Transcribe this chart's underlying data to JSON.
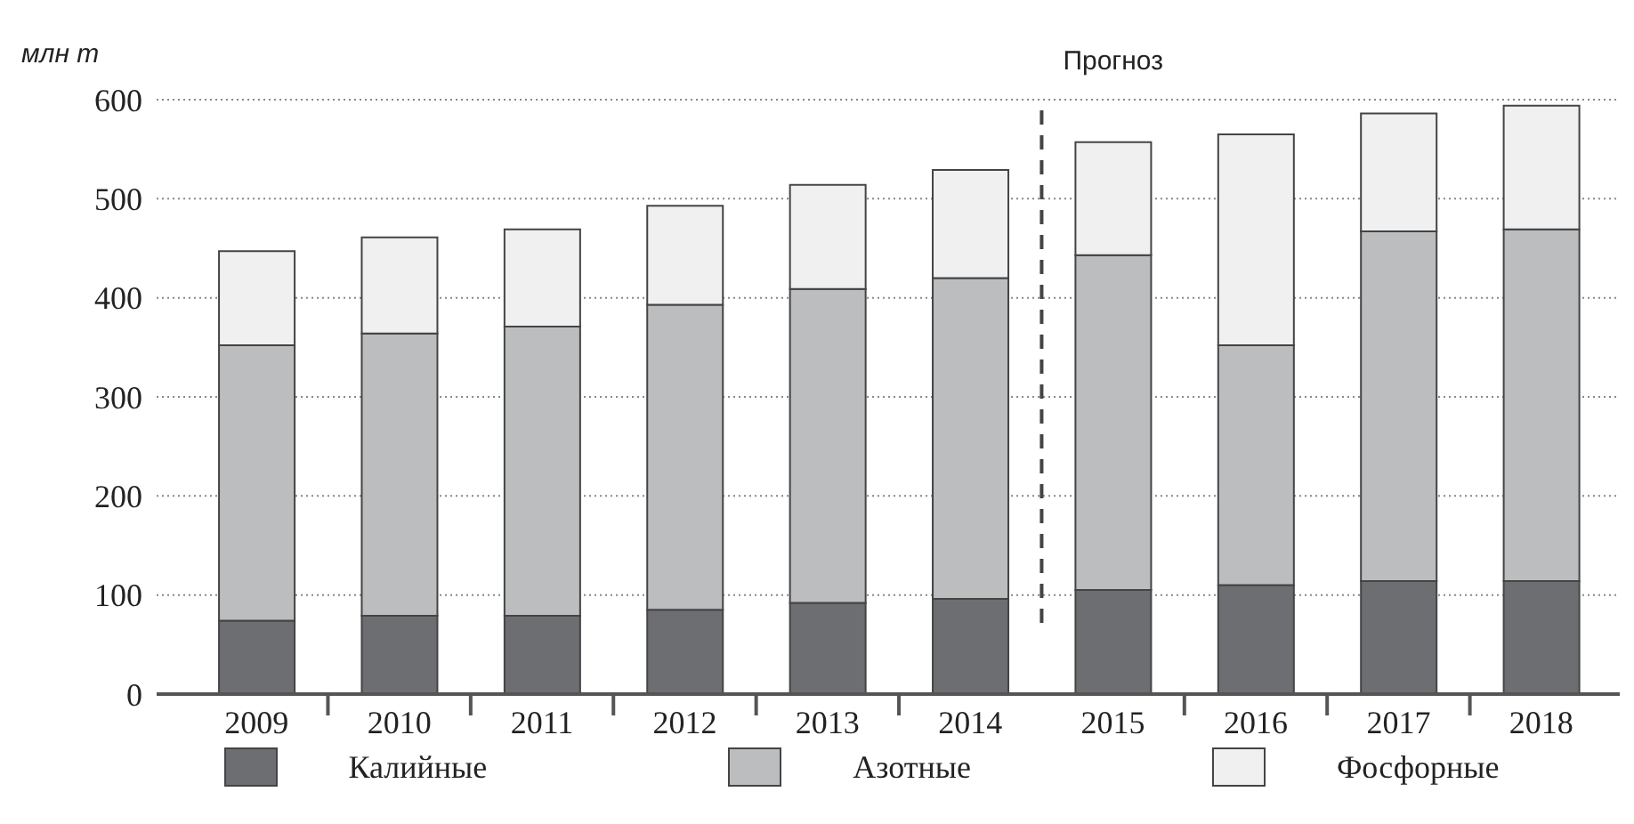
{
  "chart_data": {
    "type": "bar",
    "stacked": true,
    "ylabel": "млн т",
    "x": [
      2009,
      2010,
      2011,
      2012,
      2013,
      2014,
      2015,
      2016,
      2017,
      2018
    ],
    "series": [
      {
        "name": "Калийные",
        "color": "#6d6e71",
        "values": [
          74,
          79,
          79,
          85,
          92,
          96,
          105,
          110,
          114,
          114
        ]
      },
      {
        "name": "Азотные",
        "color": "#bcbdbf",
        "values": [
          278,
          285,
          292,
          308,
          317,
          324,
          338,
          242,
          353,
          355
        ]
      },
      {
        "name": "Фосфорные",
        "color": "#f0f0f0",
        "values": [
          95,
          97,
          98,
          100,
          105,
          109,
          114,
          213,
          119,
          125
        ]
      }
    ],
    "xlim": [
      2008.3,
      2018.55
    ],
    "xticks": [
      2009,
      2010,
      2011,
      2012,
      2013,
      2014,
      2015,
      2016,
      2017,
      2018,
      {
        "value": 2009.5,
        "label": null
      },
      {
        "value": 2010.5,
        "label": null
      },
      {
        "value": 2011.5,
        "label": null
      },
      {
        "value": 2012.5,
        "label": null
      },
      {
        "value": 2013.5,
        "label": null
      },
      {
        "value": 2015.5,
        "label": null
      },
      {
        "value": 2016.5,
        "label": null
      },
      {
        "value": 2017.5,
        "label": null
      }
    ],
    "ylim": [
      0,
      600
    ],
    "yticks": [
      0,
      100,
      200,
      300,
      400,
      500,
      600
    ],
    "grid": "y",
    "legend": "bottom",
    "ref_lines": [
      {
        "axis": "x",
        "value": 2014.5,
        "label": "Прогноз",
        "line_style": "dashed",
        "color": "#444444"
      }
    ]
  }
}
